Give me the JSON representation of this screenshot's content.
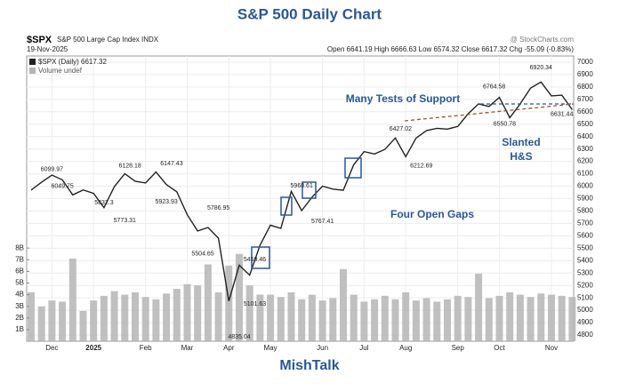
{
  "header": {
    "title": "S&P 500 Daily Chart",
    "symbol": "$SPX",
    "name": "S&P 500 Large Cap Index INDX",
    "date": "19-Nov-2025",
    "ohlc": [
      "Open 6641.19",
      "High 6666.63",
      "Low 6574.32",
      "Close 6617.32",
      "Chg -55.09 (-0.83%)"
    ],
    "source": "@ StockCharts.com",
    "footer": "MishTalk"
  },
  "chart_data": {
    "type": "line",
    "categories": [
      null,
      null,
      "Dec",
      null,
      null,
      null,
      "2025",
      null,
      null,
      null,
      null,
      "Feb",
      null,
      null,
      null,
      "Mar",
      null,
      null,
      null,
      "Apr",
      null,
      null,
      null,
      "May",
      null,
      null,
      null,
      null,
      "Jun",
      null,
      null,
      null,
      "Jul",
      null,
      null,
      null,
      "Aug",
      null,
      null,
      null,
      null,
      "Sep",
      null,
      null,
      null,
      "Oct",
      null,
      null,
      null,
      null,
      "Nov",
      null,
      null
    ],
    "series": [
      {
        "name": "$SPX (Daily) 6617.32",
        "color": "#222222",
        "values": [
          5969,
          6032,
          6090,
          6051,
          5930,
          5970,
          5942,
          5827,
          5997,
          6101,
          6040,
          6026,
          6115,
          6013,
          5955,
          5770,
          5639,
          5667,
          5581,
          5074,
          5363,
          5283,
          5525,
          5686,
          5660,
          5958,
          5803,
          5912,
          6000,
          5977,
          5967,
          6173,
          6279,
          6260,
          6297,
          6389,
          6238,
          6389,
          6449,
          6467,
          6460,
          6482,
          6584,
          6664,
          6643,
          6716,
          6552,
          6664,
          6791,
          6840,
          6728,
          6734,
          6617
        ]
      },
      {
        "name": "Volume undef",
        "color": "#b5b5b5",
        "axis": "y2",
        "values": [
          4.2,
          3.0,
          3.5,
          3.4,
          7.1,
          2.6,
          3.5,
          3.9,
          4.3,
          4.0,
          4.2,
          3.8,
          3.6,
          4.1,
          4.5,
          4.9,
          4.8,
          6.6,
          4.2,
          6.5,
          7.5,
          4.8,
          4.0,
          4.0,
          3.8,
          4.2,
          3.6,
          4.0,
          3.5,
          3.7,
          6.2,
          4.0,
          3.4,
          3.6,
          3.9,
          3.6,
          4.2,
          3.5,
          3.7,
          3.4,
          3.6,
          3.9,
          3.8,
          5.8,
          3.7,
          3.9,
          4.2,
          4.0,
          3.8,
          4.1,
          4.0,
          3.9,
          3.8
        ]
      }
    ],
    "ylim": [
      4750,
      7050
    ],
    "yticks": [
      4800,
      4900,
      5000,
      5100,
      5200,
      5300,
      5400,
      5500,
      5600,
      5700,
      5800,
      5900,
      6000,
      6100,
      6200,
      6300,
      6400,
      6500,
      6600,
      6700,
      6800,
      6900,
      7000
    ],
    "y2lim": [
      0,
      24.5
    ],
    "y2ticks": [
      {
        "value": 1,
        "label": "1B"
      },
      {
        "value": 2,
        "label": "2B"
      },
      {
        "value": 3,
        "label": "3B"
      },
      {
        "value": 4,
        "label": "4B"
      },
      {
        "value": 5,
        "label": "5B"
      },
      {
        "value": 6,
        "label": "6B"
      },
      {
        "value": 7,
        "label": "7B"
      },
      {
        "value": 8,
        "label": "8B"
      }
    ],
    "grid": true,
    "annotations": [
      {
        "index": 2,
        "value": 6099.97
      },
      {
        "index": 3,
        "value": 6049.75
      },
      {
        "index": 7,
        "value": 5832.3
      },
      {
        "index": 9,
        "value": 5773.31
      },
      {
        "index": 9.5,
        "value": 6128.18
      },
      {
        "index": 13,
        "value": 5923.93
      },
      {
        "index": 13.5,
        "value": 6147.43
      },
      {
        "index": 18,
        "value": 5786.95
      },
      {
        "index": 16.5,
        "value": 5504.65
      },
      {
        "index": 21.5,
        "value": 5459.46
      },
      {
        "index": 21.5,
        "value": 5101.63
      },
      {
        "index": 20,
        "value": 4835.04
      },
      {
        "index": 26,
        "value": 5968.61
      },
      {
        "index": 28,
        "value": 5767.41
      },
      {
        "index": 35.5,
        "value": 6427.02
      },
      {
        "index": 37.5,
        "value": 6212.69
      },
      {
        "index": 44.5,
        "value": 6764.58
      },
      {
        "index": 45.5,
        "value": 6550.78
      },
      {
        "index": 49,
        "value": 6920.34
      },
      {
        "index": 51,
        "value": 6631.44
      }
    ],
    "text_annotations": [
      "Many Tests of Support",
      "Slanted",
      "H&S",
      "Four Open Gaps"
    ]
  }
}
